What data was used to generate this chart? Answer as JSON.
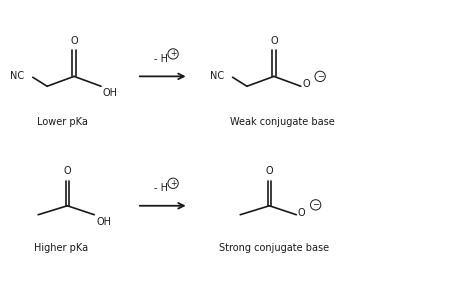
{
  "figsize": [
    4.49,
    3.01
  ],
  "dpi": 100,
  "bg_color": "#ffffff",
  "line_color": "#1a1a1a",
  "line_width": 1.2,
  "xlim": [
    0,
    10
  ],
  "ylim": [
    0,
    6.7
  ],
  "labels": {
    "lower_pka": "Lower pKa",
    "weak_conj": "Weak conjugate base",
    "higher_pka": "Higher pKa",
    "strong_conj": "Strong conjugate base"
  }
}
